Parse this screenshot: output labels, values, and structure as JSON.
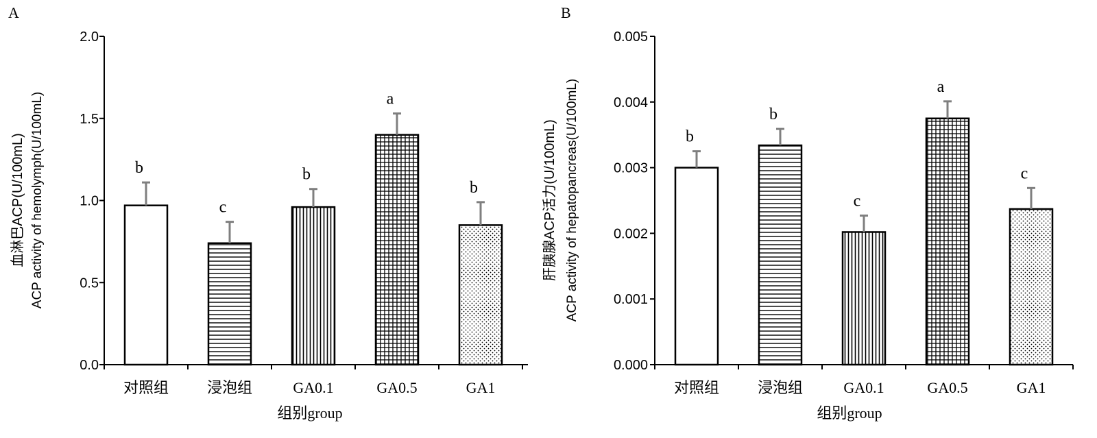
{
  "chart_data": [
    {
      "type": "bar",
      "panel": "A",
      "categories": [
        "对照组",
        "浸泡组",
        "GA0.1",
        "GA0.5",
        "GA1"
      ],
      "values": [
        0.97,
        0.74,
        0.96,
        1.4,
        0.85
      ],
      "errors": [
        0.14,
        0.13,
        0.11,
        0.13,
        0.14
      ],
      "significance": [
        "b",
        "c",
        "b",
        "a",
        "b"
      ],
      "patterns": [
        "white",
        "horizontal",
        "vertical",
        "grid",
        "dots"
      ],
      "ylim": [
        0,
        2.0
      ],
      "yticks": [
        "0.0",
        "0.5",
        "1.0",
        "1.5",
        "2.0"
      ],
      "ylabel_cn": "血淋巴ACP(U/100mL)",
      "ylabel_en": "ACP activity of hemolymph(U/100mL)",
      "xlabel": "组别group"
    },
    {
      "type": "bar",
      "panel": "B",
      "categories": [
        "对照组",
        "浸泡组",
        "GA0.1",
        "GA0.5",
        "GA1"
      ],
      "values": [
        0.003,
        0.00334,
        0.00202,
        0.00375,
        0.00237
      ],
      "errors": [
        0.00025,
        0.00025,
        0.00025,
        0.00026,
        0.00032
      ],
      "significance": [
        "b",
        "b",
        "c",
        "a",
        "c"
      ],
      "patterns": [
        "white",
        "horizontal",
        "vertical",
        "grid",
        "dots"
      ],
      "ylim": [
        0,
        0.005
      ],
      "yticks": [
        "0.000",
        "0.001",
        "0.002",
        "0.003",
        "0.004",
        "0.005"
      ],
      "ylabel_cn": "肝胰腺ACP活力(U/100mL)",
      "ylabel_en": "ACP activity of hepatopancreas(U/100mL)",
      "xlabel": "组别group"
    }
  ]
}
